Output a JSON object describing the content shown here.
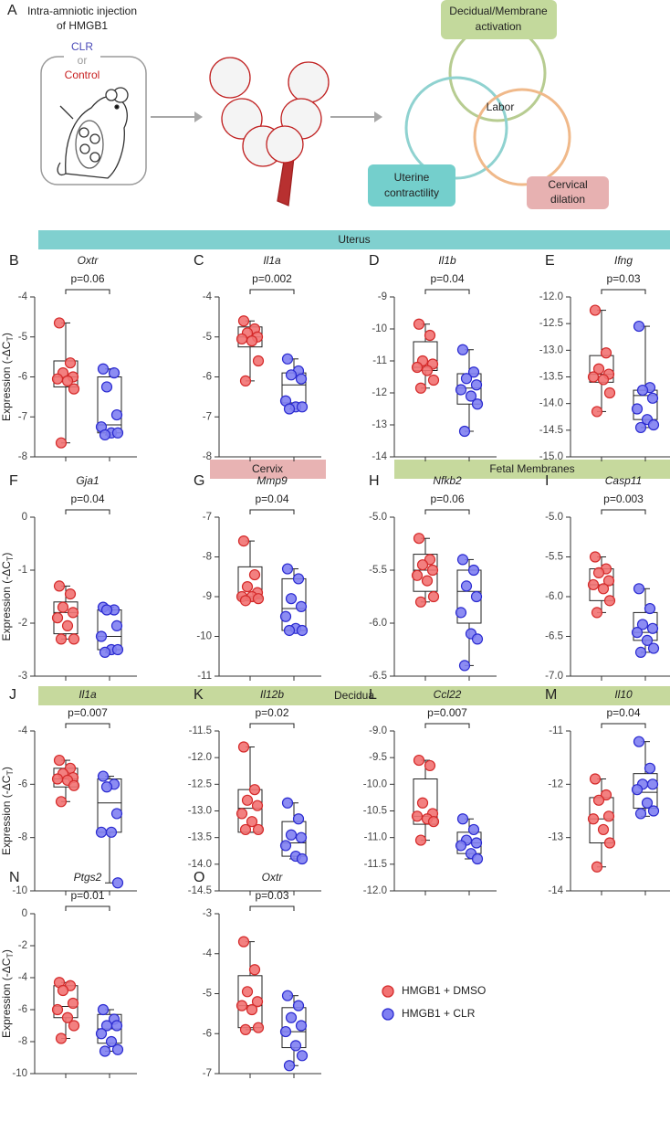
{
  "diagram": {
    "label": "A",
    "injection": [
      "Intra-amniotic injection",
      "of HMGB1"
    ],
    "groups": [
      "CLR",
      "or",
      "Control"
    ],
    "venn": {
      "top": [
        "Decidual/Membrane",
        "activation"
      ],
      "center": "Labor",
      "left": [
        "Uterine",
        "contractility"
      ],
      "right": [
        "Cervical",
        "dilation"
      ]
    }
  },
  "sections": [
    "Uterus",
    "Cervix",
    "Fetal Membranes",
    "Decidua"
  ],
  "legend": [
    {
      "name": "HMGB1 + DMSO",
      "color": "#f27272"
    },
    {
      "name": "HMGB1 + CLR",
      "color": "#7f7ff2"
    }
  ],
  "chart_data": [
    {
      "type": "box",
      "panel": "B",
      "title": "Oxtr",
      "annotation": "p=0.06",
      "ylabel": {
        "text": "Expression (-ΔC",
        "sub": "T",
        "close": ")"
      },
      "ylim": [
        -8,
        -4
      ],
      "yticks": [
        -4,
        -5,
        -6,
        -7,
        -8
      ],
      "series": [
        {
          "color": "#f27272",
          "values": [
            -4.65,
            -5.65,
            -5.9,
            -6.0,
            -6.05,
            -6.1,
            -6.3,
            -7.65
          ],
          "box": [
            -7.65,
            -6.25,
            -6.0,
            -5.6,
            -4.65
          ]
        },
        {
          "color": "#7f7ff2",
          "values": [
            -5.8,
            -5.9,
            -6.25,
            -6.95,
            -7.25,
            -7.4,
            -7.4,
            -7.45
          ],
          "box": [
            -7.45,
            -7.4,
            -7.2,
            -6.0,
            -5.8
          ]
        }
      ]
    },
    {
      "type": "box",
      "panel": "C",
      "title": "Il1a",
      "annotation": "p=0.002",
      "ylim": [
        -8,
        -4
      ],
      "yticks": [
        -4,
        -5,
        -6,
        -7,
        -8
      ],
      "series": [
        {
          "color": "#f27272",
          "values": [
            -4.6,
            -4.8,
            -4.9,
            -5.0,
            -5.05,
            -5.1,
            -5.6,
            -6.1
          ],
          "box": [
            -6.1,
            -5.25,
            -5.0,
            -4.75,
            -4.6
          ]
        },
        {
          "color": "#7f7ff2",
          "values": [
            -5.55,
            -5.85,
            -5.95,
            -6.05,
            -6.6,
            -6.75,
            -6.75,
            -6.8
          ],
          "box": [
            -6.8,
            -6.65,
            -6.2,
            -5.9,
            -5.55
          ]
        }
      ]
    },
    {
      "type": "box",
      "panel": "D",
      "title": "Il1b",
      "annotation": "p=0.04",
      "ylim": [
        -14,
        -9
      ],
      "yticks": [
        -9,
        -10,
        -11,
        -12,
        -13,
        -14
      ],
      "series": [
        {
          "color": "#f27272",
          "values": [
            -9.85,
            -10.2,
            -11.0,
            -11.1,
            -11.2,
            -11.3,
            -11.6,
            -11.85
          ],
          "box": [
            -11.85,
            -11.3,
            -11.2,
            -10.4,
            -9.85
          ]
        },
        {
          "color": "#7f7ff2",
          "values": [
            -10.65,
            -11.35,
            -11.55,
            -11.75,
            -11.9,
            -12.1,
            -12.35,
            -13.2
          ],
          "box": [
            -13.2,
            -12.35,
            -11.85,
            -11.4,
            -10.65
          ]
        }
      ]
    },
    {
      "type": "box",
      "panel": "E",
      "title": "Ifng",
      "annotation": "p=0.03",
      "ylim": [
        -15,
        -12
      ],
      "yticks": [
        {
          "value": -12,
          "label": "-12.0"
        },
        -12.5,
        {
          "value": -13,
          "label": "-13.0"
        },
        -13.5,
        {
          "value": -14,
          "label": "-14.0"
        },
        -14.5,
        {
          "value": -15,
          "label": "-15.0"
        }
      ],
      "series": [
        {
          "color": "#f27272",
          "values": [
            -12.25,
            -13.05,
            -13.35,
            -13.45,
            -13.5,
            -13.55,
            -13.8,
            -14.15
          ],
          "box": [
            -14.15,
            -13.6,
            -13.45,
            -13.1,
            -12.25
          ]
        },
        {
          "color": "#7f7ff2",
          "values": [
            -12.55,
            -13.7,
            -13.75,
            -13.9,
            -14.1,
            -14.3,
            -14.4,
            -14.45
          ],
          "box": [
            -14.45,
            -14.3,
            -13.85,
            -13.75,
            -12.55
          ]
        }
      ]
    },
    {
      "type": "box",
      "panel": "F",
      "title": "Gja1",
      "annotation": "p=0.04",
      "ylabel": {
        "text": "Expression (-ΔC",
        "sub": "T",
        "close": ")"
      },
      "ylim": [
        -3,
        0
      ],
      "yticks": [
        0,
        -1,
        -2,
        -3
      ],
      "series": [
        {
          "color": "#f27272",
          "values": [
            -1.3,
            -1.45,
            -1.7,
            -1.8,
            -1.9,
            -2.05,
            -2.3,
            -2.3
          ],
          "box": [
            -2.3,
            -2.2,
            -1.8,
            -1.6,
            -1.3
          ]
        },
        {
          "color": "#7f7ff2",
          "values": [
            -1.7,
            -1.75,
            -1.75,
            -2.05,
            -2.25,
            -2.5,
            -2.5,
            -2.55
          ],
          "box": [
            -2.55,
            -2.5,
            -2.25,
            -1.75,
            -1.7
          ]
        }
      ]
    },
    {
      "type": "box",
      "panel": "G",
      "title": "Mmp9",
      "annotation": "p=0.04",
      "ylim": [
        -11,
        -7
      ],
      "yticks": [
        -7,
        -8,
        -9,
        -10,
        -11
      ],
      "series": [
        {
          "color": "#f27272",
          "values": [
            -7.6,
            -8.45,
            -8.75,
            -8.9,
            -9.0,
            -9.0,
            -9.05,
            -9.1
          ],
          "box": [
            -9.1,
            -9.05,
            -9.0,
            -8.25,
            -7.6
          ]
        },
        {
          "color": "#7f7ff2",
          "values": [
            -8.3,
            -8.55,
            -9.05,
            -9.25,
            -9.5,
            -9.8,
            -9.85,
            -9.85
          ],
          "box": [
            -9.85,
            -9.85,
            -9.3,
            -8.55,
            -8.3
          ]
        }
      ]
    },
    {
      "type": "box",
      "panel": "H",
      "title": "Nfkb2",
      "annotation": "p=0.06",
      "ylim": [
        -6.5,
        -5
      ],
      "yticks": [
        {
          "value": -5,
          "label": "-5.0"
        },
        -5.5,
        {
          "value": -6,
          "label": "-6.0"
        },
        -6.5
      ],
      "series": [
        {
          "color": "#f27272",
          "values": [
            -5.2,
            -5.4,
            -5.45,
            -5.5,
            -5.55,
            -5.6,
            -5.75,
            -5.8
          ],
          "box": [
            -5.8,
            -5.7,
            -5.5,
            -5.35,
            -5.2
          ]
        },
        {
          "color": "#7f7ff2",
          "values": [
            -5.4,
            -5.5,
            -5.65,
            -5.75,
            -5.9,
            -6.1,
            -6.15,
            -6.4
          ],
          "box": [
            -6.4,
            -6.0,
            -5.7,
            -5.5,
            -5.4
          ]
        }
      ]
    },
    {
      "type": "box",
      "panel": "I",
      "title": "Casp11",
      "annotation": "p=0.003",
      "ylim": [
        -7,
        -5
      ],
      "yticks": [
        {
          "value": -5,
          "label": "-5.0"
        },
        -5.5,
        {
          "value": -6,
          "label": "-6.0"
        },
        -6.5,
        {
          "value": -7,
          "label": "-7.0"
        }
      ],
      "series": [
        {
          "color": "#f27272",
          "values": [
            -5.5,
            -5.65,
            -5.7,
            -5.8,
            -5.85,
            -5.9,
            -6.05,
            -6.2
          ],
          "box": [
            -6.2,
            -6.05,
            -5.85,
            -5.65,
            -5.5
          ]
        },
        {
          "color": "#7f7ff2",
          "values": [
            -5.9,
            -6.15,
            -6.35,
            -6.4,
            -6.45,
            -6.55,
            -6.65,
            -6.7
          ],
          "box": [
            -6.7,
            -6.55,
            -6.45,
            -6.2,
            -5.9
          ]
        }
      ]
    },
    {
      "type": "box",
      "panel": "J",
      "title": "Il1a",
      "annotation": "p=0.007",
      "ylabel": {
        "text": "Expression (-ΔC",
        "sub": "T",
        "close": ")"
      },
      "ylim": [
        -10,
        -4
      ],
      "yticks": [
        -4,
        -6,
        -8,
        -10
      ],
      "series": [
        {
          "color": "#f27272",
          "values": [
            -5.1,
            -5.4,
            -5.6,
            -5.75,
            -5.8,
            -5.85,
            -6.05,
            -6.65
          ],
          "box": [
            -6.65,
            -6.1,
            -5.8,
            -5.4,
            -5.1
          ]
        },
        {
          "color": "#7f7ff2",
          "values": [
            -5.7,
            -6.0,
            -6.1,
            -7.1,
            -7.8,
            -7.8,
            -9.7
          ],
          "box": [
            -9.7,
            -7.8,
            -6.7,
            -5.8,
            -5.7
          ]
        }
      ]
    },
    {
      "type": "box",
      "panel": "K",
      "title": "Il12b",
      "annotation": "p=0.02",
      "ylim": [
        -14.5,
        -11.5
      ],
      "yticks": [
        -11.5,
        {
          "value": -12,
          "label": "-12.0"
        },
        -12.5,
        {
          "value": -13,
          "label": "-13.0"
        },
        -13.5,
        {
          "value": -14,
          "label": "-14.0"
        },
        -14.5
      ],
      "series": [
        {
          "color": "#f27272",
          "values": [
            -11.8,
            -12.6,
            -12.8,
            -12.9,
            -13.05,
            -13.2,
            -13.35,
            -13.35
          ],
          "box": [
            -13.4,
            -13.4,
            -12.95,
            -12.6,
            -11.8
          ]
        },
        {
          "color": "#7f7ff2",
          "values": [
            -12.85,
            -13.15,
            -13.45,
            -13.5,
            -13.65,
            -13.85,
            -13.9
          ],
          "box": [
            -13.9,
            -13.85,
            -13.6,
            -13.2,
            -12.85
          ]
        }
      ]
    },
    {
      "type": "box",
      "panel": "L",
      "title": "Ccl22",
      "annotation": "p=0.007",
      "ylim": [
        -12,
        -9
      ],
      "yticks": [
        {
          "value": -9,
          "label": "-9.0"
        },
        -9.5,
        {
          "value": -10,
          "label": "-10.0"
        },
        -10.5,
        {
          "value": -11,
          "label": "-11.0"
        },
        -11.5,
        {
          "value": -12,
          "label": "-12.0"
        }
      ],
      "series": [
        {
          "color": "#f27272",
          "values": [
            -9.55,
            -9.65,
            -10.35,
            -10.55,
            -10.6,
            -10.65,
            -10.7,
            -11.05
          ],
          "box": [
            -11.05,
            -10.75,
            -10.6,
            -9.9,
            -9.55
          ]
        },
        {
          "color": "#7f7ff2",
          "values": [
            -10.65,
            -10.85,
            -11.05,
            -11.1,
            -11.15,
            -11.3,
            -11.4
          ],
          "box": [
            -11.4,
            -11.3,
            -11.1,
            -10.9,
            -10.65
          ]
        }
      ]
    },
    {
      "type": "box",
      "panel": "M",
      "title": "Il10",
      "annotation": "p=0.04",
      "ylim": [
        -14,
        -11
      ],
      "yticks": [
        -11,
        -12,
        -13,
        -14
      ],
      "series": [
        {
          "color": "#f27272",
          "values": [
            -11.9,
            -12.2,
            -12.3,
            -12.6,
            -12.65,
            -12.85,
            -13.1,
            -13.55
          ],
          "box": [
            -13.55,
            -13.1,
            -12.65,
            -12.25,
            -11.9
          ]
        },
        {
          "color": "#7f7ff2",
          "values": [
            -11.2,
            -11.7,
            -12.0,
            -12.0,
            -12.1,
            -12.35,
            -12.5,
            -12.55
          ],
          "box": [
            -12.6,
            -12.45,
            -12.15,
            -11.8,
            -11.2
          ]
        }
      ]
    },
    {
      "type": "box",
      "panel": "N",
      "title": "Ptgs2",
      "annotation": "p=0.01",
      "ylabel": {
        "text": "Expression (-ΔC",
        "sub": "T",
        "close": ")"
      },
      "ylim": [
        -10,
        0
      ],
      "yticks": [
        0,
        -2,
        -4,
        -6,
        -8,
        -10
      ],
      "series": [
        {
          "color": "#f27272",
          "values": [
            -4.3,
            -4.5,
            -4.8,
            -5.6,
            -6.0,
            -6.5,
            -7.0,
            -7.8
          ],
          "box": [
            -7.8,
            -6.5,
            -5.8,
            -4.5,
            -4.3
          ]
        },
        {
          "color": "#7f7ff2",
          "values": [
            -6.0,
            -6.6,
            -7.0,
            -7.0,
            -7.5,
            -8.0,
            -8.5,
            -8.6
          ],
          "box": [
            -8.6,
            -8.1,
            -7.2,
            -6.3,
            -6.0
          ]
        }
      ]
    },
    {
      "type": "box",
      "panel": "O",
      "title": "Oxtr",
      "annotation": "p=0.03",
      "ylim": [
        -7,
        -3
      ],
      "yticks": [
        -3,
        -4,
        -5,
        -6,
        -7
      ],
      "series": [
        {
          "color": "#f27272",
          "values": [
            -3.7,
            -4.4,
            -4.95,
            -5.2,
            -5.3,
            -5.4,
            -5.85,
            -5.9
          ],
          "box": [
            -5.9,
            -5.85,
            -5.3,
            -4.55,
            -3.7
          ]
        },
        {
          "color": "#7f7ff2",
          "values": [
            -5.05,
            -5.3,
            -5.6,
            -5.8,
            -5.95,
            -6.3,
            -6.55,
            -6.8
          ],
          "box": [
            -6.8,
            -6.35,
            -5.95,
            -5.35,
            -5.05
          ]
        }
      ]
    }
  ]
}
